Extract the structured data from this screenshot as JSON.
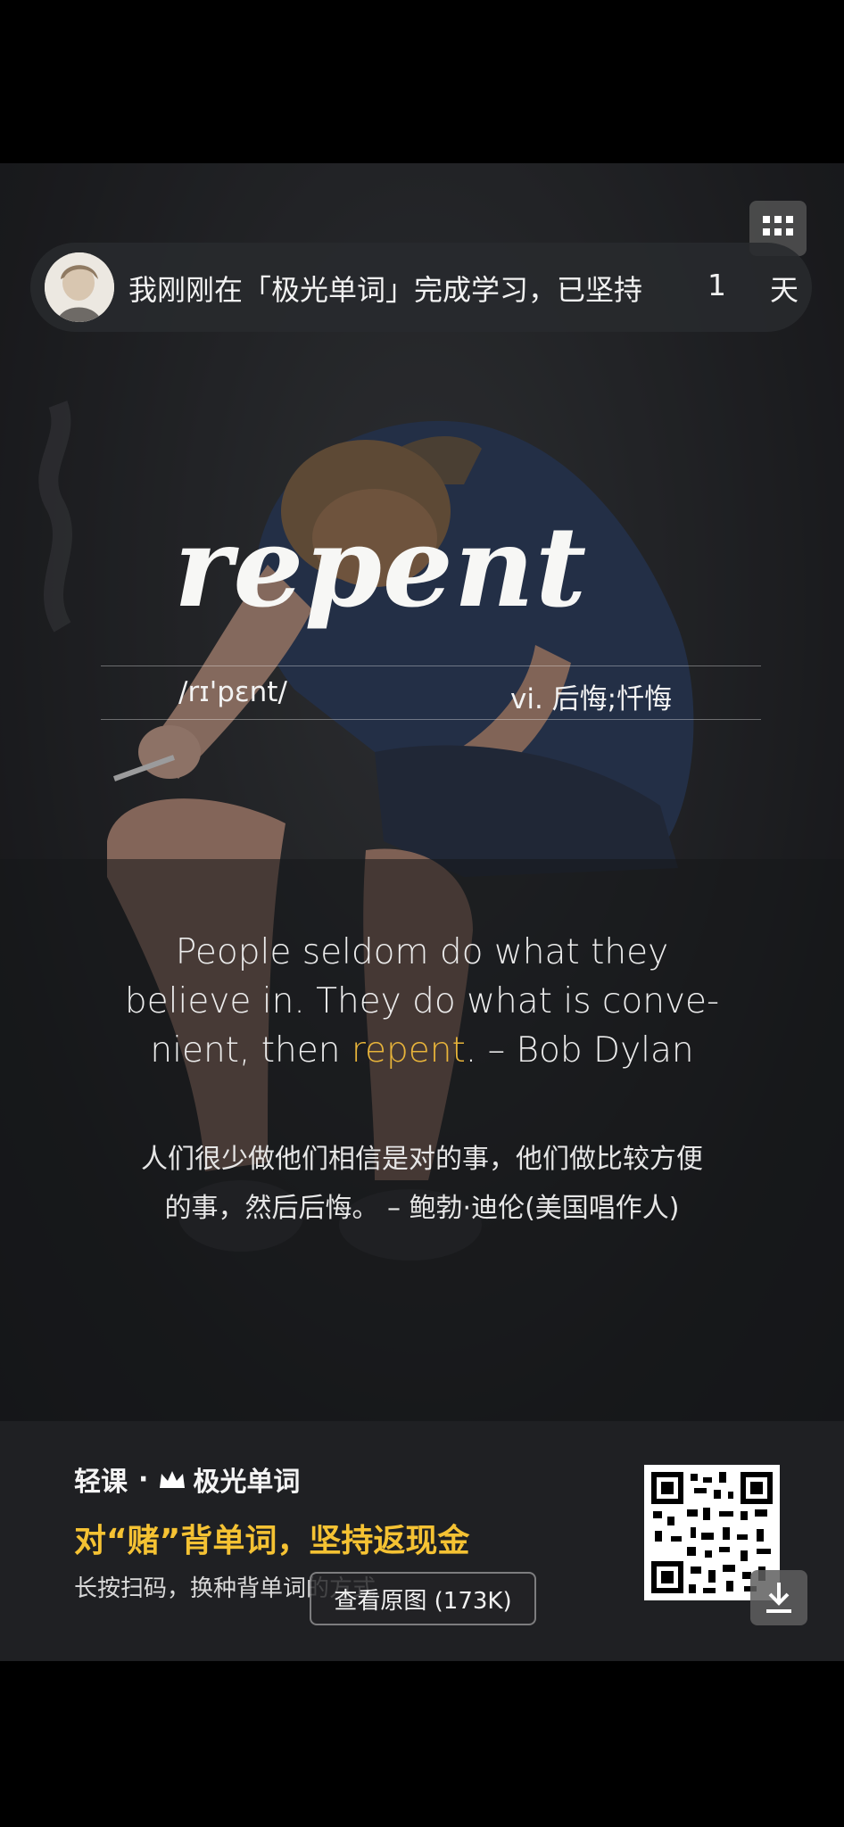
{
  "share": {
    "text": "我刚刚在「极光单词」完成学习，已坚持",
    "days": "1",
    "unit": "天"
  },
  "word": {
    "text": "repent",
    "phonetic": "/rɪ'pɛnt/",
    "meaning": "vi. 后悔;忏悔"
  },
  "quote": {
    "en_lines": [
      "People seldom do what they",
      "believe in. They do what is conve-"
    ],
    "en_last_before": "nient, then ",
    "en_highlight": "repent",
    "en_last_after": ". – Bob Dylan",
    "cn_line1": "人们很少做他们相信是对的事，他们做比较方便",
    "cn_line2": "的事，然后后悔。   – 鲍勃·迪伦(美国唱作人)"
  },
  "footer": {
    "brand_prefix": "轻课",
    "brand_separator": "·",
    "brand_name": "极光单词",
    "promo": "对“赌”背单词，坚持返现金",
    "sub": "长按扫码，换种背单词的方式"
  },
  "overlay": {
    "view_original": "查看原图 (173K)"
  },
  "icons": {
    "grid": "grid-icon",
    "download": "download-icon",
    "crown": "crown-icon",
    "qr": "qr-code"
  },
  "colors": {
    "highlight": "#e8b43a",
    "promo": "#f5c233"
  }
}
